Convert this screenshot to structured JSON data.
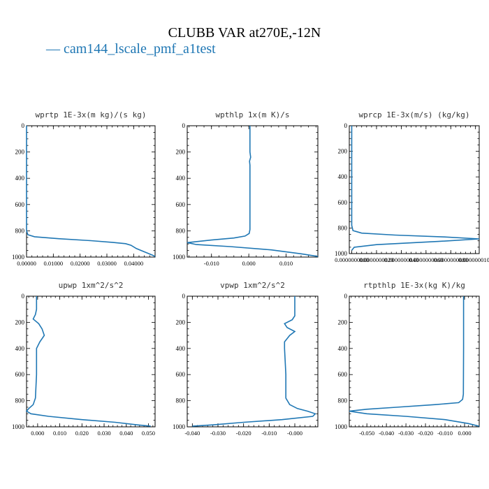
{
  "figure": {
    "title": "CLUBB VAR at270E,-12N",
    "legend_label": "cam144_lscale_pmf_a1test",
    "series_color": "#1f77b4"
  },
  "chart_data": [
    {
      "type": "line",
      "title": "wprtp  1E-3x(m kg)/(s kg)",
      "xlim": [
        0.0,
        0.048
      ],
      "ylim": [
        1000,
        0
      ],
      "xticks": [
        0.0,
        0.01,
        0.02,
        0.03,
        0.04
      ],
      "xticklabels": [
        "0.00000",
        "0.01000",
        "0.02000",
        "0.03000",
        "0.04000"
      ],
      "yticks": [
        0,
        200,
        400,
        600,
        800,
        1000
      ],
      "series": [
        {
          "x": [
            0.0,
            0.0,
            0.0,
            0.0005,
            0.003,
            0.012,
            0.024,
            0.032,
            0.037,
            0.039,
            0.041,
            0.044,
            0.047,
            0.048
          ],
          "y": [
            0,
            400,
            800,
            830,
            845,
            860,
            875,
            888,
            898,
            910,
            935,
            960,
            985,
            995
          ]
        }
      ]
    },
    {
      "type": "line",
      "title": "wpthlp  1x(m K)/s",
      "xlim": [
        -0.0165,
        0.0185
      ],
      "ylim": [
        1000,
        0
      ],
      "xticks": [
        -0.01,
        0.0,
        0.01
      ],
      "xticklabels": [
        "-0.010",
        "0.000",
        "0.010"
      ],
      "yticks": [
        0,
        200,
        400,
        600,
        800,
        1000
      ],
      "series": [
        {
          "x": [
            0.0003,
            0.0003,
            0.0005,
            0.0002,
            0.0003,
            0.0003,
            0.0003,
            0.0001,
            -0.001,
            -0.004,
            -0.01,
            -0.0165,
            -0.014,
            -0.005,
            0.006,
            0.014,
            0.0185
          ],
          "y": [
            0,
            200,
            240,
            270,
            300,
            500,
            790,
            820,
            840,
            855,
            870,
            890,
            905,
            920,
            945,
            975,
            995
          ]
        }
      ]
    },
    {
      "type": "line",
      "title": "wprcp  1E-3x(m/s) (kg/kg)",
      "xlim": [
        -2e-10,
        1.03e-08
      ],
      "ylim": [
        1000,
        0
      ],
      "xticks": [
        0.0,
        2e-09,
        4e-09,
        6e-09,
        8e-09,
        1e-08
      ],
      "xticklabels": [
        "0.0000000000",
        "0.0000000020",
        "0.0000000040",
        "0.0000000060",
        "0.0000000080",
        "0.0000000100"
      ],
      "yticks": [
        0,
        200,
        400,
        600,
        800,
        1000
      ],
      "series": [
        {
          "x": [
            0.0,
            0.0,
            1e-10,
            8e-10,
            3.5e-09,
            7.5e-09,
            1.03e-08,
            7e-09,
            2e-09,
            2e-10,
            0.0
          ],
          "y": [
            0,
            780,
            820,
            840,
            855,
            870,
            885,
            905,
            930,
            950,
            975
          ]
        }
      ]
    },
    {
      "type": "line",
      "title": "upwp  1xm^2/s^2",
      "xlim": [
        -0.005,
        0.053
      ],
      "ylim": [
        1000,
        0
      ],
      "xticks": [
        0.0,
        0.01,
        0.02,
        0.03,
        0.04,
        0.05
      ],
      "xticklabels": [
        "0.000",
        "0.010",
        "0.020",
        "0.030",
        "0.040",
        "0.050"
      ],
      "yticks": [
        0,
        200,
        400,
        600,
        800,
        1000
      ],
      "series": [
        {
          "x": [
            -0.0005,
            -0.0005,
            -0.001,
            -0.002,
            0.0005,
            0.002,
            0.003,
            0.001,
            -0.0005,
            -0.0005,
            -0.001,
            -0.002,
            -0.004,
            -0.005,
            -0.003,
            0.005,
            0.02,
            0.035,
            0.045,
            0.051
          ],
          "y": [
            0,
            100,
            140,
            175,
            210,
            250,
            300,
            350,
            400,
            600,
            780,
            830,
            860,
            880,
            900,
            920,
            945,
            965,
            985,
            995
          ]
        }
      ]
    },
    {
      "type": "line",
      "title": "vpwp  1xm^2/s^2",
      "xlim": [
        -0.042,
        0.009
      ],
      "ylim": [
        1000,
        0
      ],
      "xticks": [
        -0.04,
        -0.03,
        -0.02,
        -0.01,
        0.0
      ],
      "xticklabels": [
        "-0.040",
        "-0.030",
        "-0.020",
        "-0.010",
        "-0.000"
      ],
      "yticks": [
        0,
        200,
        400,
        600,
        800,
        1000
      ],
      "series": [
        {
          "x": [
            0.0,
            0.0,
            -0.001,
            -0.004,
            -0.003,
            0.0,
            -0.002,
            -0.004,
            -0.004,
            -0.0035,
            -0.0035,
            -0.002,
            0.001,
            0.005,
            0.008,
            0.007,
            -0.005,
            -0.02,
            -0.032,
            -0.04
          ],
          "y": [
            0,
            150,
            180,
            210,
            240,
            270,
            300,
            350,
            400,
            600,
            780,
            830,
            860,
            880,
            900,
            920,
            945,
            965,
            985,
            995
          ]
        }
      ]
    },
    {
      "type": "line",
      "title": "rtpthlp  1E-3x(kg K)/kg",
      "xlim": [
        -0.059,
        0.0075
      ],
      "ylim": [
        1000,
        0
      ],
      "xticks": [
        -0.05,
        -0.04,
        -0.03,
        -0.02,
        -0.01,
        0.0
      ],
      "xticklabels": [
        "-0.050",
        "-0.040",
        "-0.030",
        "-0.020",
        "-0.010",
        "0.000"
      ],
      "yticks": [
        0,
        200,
        400,
        600,
        800,
        1000
      ],
      "series": [
        {
          "x": [
            -0.0005,
            -0.0005,
            -0.0006,
            -0.001,
            -0.003,
            -0.015,
            -0.035,
            -0.05,
            -0.059,
            -0.05,
            -0.03,
            -0.01,
            0.002,
            0.0075
          ],
          "y": [
            0,
            400,
            750,
            790,
            815,
            830,
            850,
            865,
            880,
            900,
            920,
            945,
            975,
            995
          ]
        }
      ]
    }
  ]
}
